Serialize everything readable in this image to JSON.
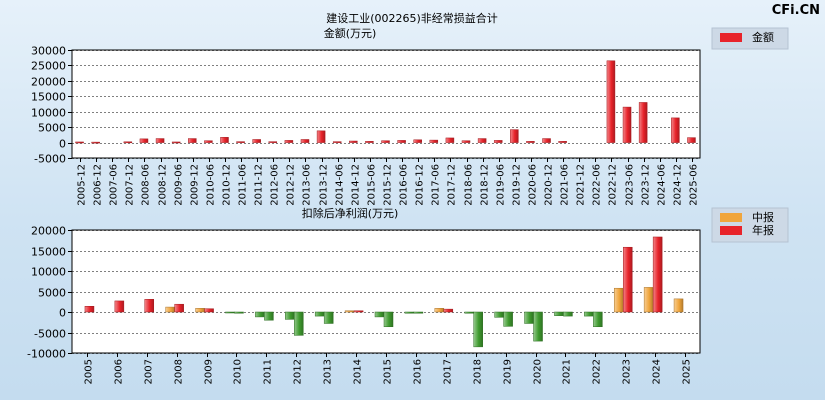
{
  "watermark": "CFi.CN",
  "chart_data": [
    {
      "type": "bar",
      "title": "建设工业(002265)非经常损益合计",
      "ylabel": "金额(万元)",
      "legend": {
        "position": "top-right",
        "entries": [
          "金额"
        ]
      },
      "ylim": [
        -5000,
        30000
      ],
      "yticks": [
        30000,
        25000,
        20000,
        15000,
        10000,
        5000,
        0,
        -5000
      ],
      "grid": true,
      "categories": [
        "2005-12",
        "2006-12",
        "2007-06",
        "2007-12",
        "2008-06",
        "2008-12",
        "2009-06",
        "2009-12",
        "2010-06",
        "2010-12",
        "2011-06",
        "2011-12",
        "2012-06",
        "2012-12",
        "2013-06",
        "2013-12",
        "2014-06",
        "2014-12",
        "2015-06",
        "2015-12",
        "2016-06",
        "2016-12",
        "2017-06",
        "2017-12",
        "2018-06",
        "2018-12",
        "2019-06",
        "2019-12",
        "2020-06",
        "2020-12",
        "2021-06",
        "2021-12",
        "2022-06",
        "2022-12",
        "2023-06",
        "2023-12",
        "2024-06",
        "2024-12",
        "2025-06"
      ],
      "series": [
        {
          "name": "金额",
          "color": "#e8232a",
          "values": [
            200,
            150,
            0,
            250,
            1200,
            1300,
            200,
            1300,
            600,
            1700,
            300,
            1000,
            300,
            700,
            1000,
            3800,
            300,
            500,
            400,
            600,
            700,
            900,
            800,
            1500,
            600,
            1300,
            700,
            4200,
            400,
            1300,
            400,
            0,
            0,
            26500,
            11500,
            13000,
            0,
            8000,
            1600
          ]
        }
      ]
    },
    {
      "type": "bar",
      "title": "扣除后净利润(万元)",
      "legend": {
        "position": "top-right",
        "entries": [
          "中报",
          "年报"
        ]
      },
      "ylim": [
        -10000,
        20000
      ],
      "yticks": [
        20000,
        15000,
        10000,
        5000,
        0,
        -5000,
        -10000
      ],
      "grid": true,
      "categories": [
        "2005",
        "2006",
        "2007",
        "2008",
        "2009",
        "2010",
        "2011",
        "2012",
        "2013",
        "2014",
        "2015",
        "2016",
        "2017",
        "2018",
        "2019",
        "2020",
        "2021",
        "2022",
        "2023",
        "2024",
        "2025"
      ],
      "series": [
        {
          "name": "中报",
          "color": "#f0a53c",
          "values": [
            null,
            null,
            null,
            1200,
            900,
            -200,
            -1200,
            -1800,
            -1000,
            300,
            -1200,
            -300,
            900,
            -300,
            -1300,
            -2800,
            -900,
            -1000,
            5800,
            6000,
            3200
          ]
        },
        {
          "name": "年报",
          "color": "#e8232a",
          "values": [
            1400,
            2700,
            3100,
            1900,
            800,
            -300,
            -2000,
            -5700,
            -2800,
            300,
            -3600,
            -300,
            700,
            -8500,
            -3500,
            -7100,
            -1000,
            -3600,
            15800,
            18300,
            null
          ]
        }
      ]
    }
  ]
}
